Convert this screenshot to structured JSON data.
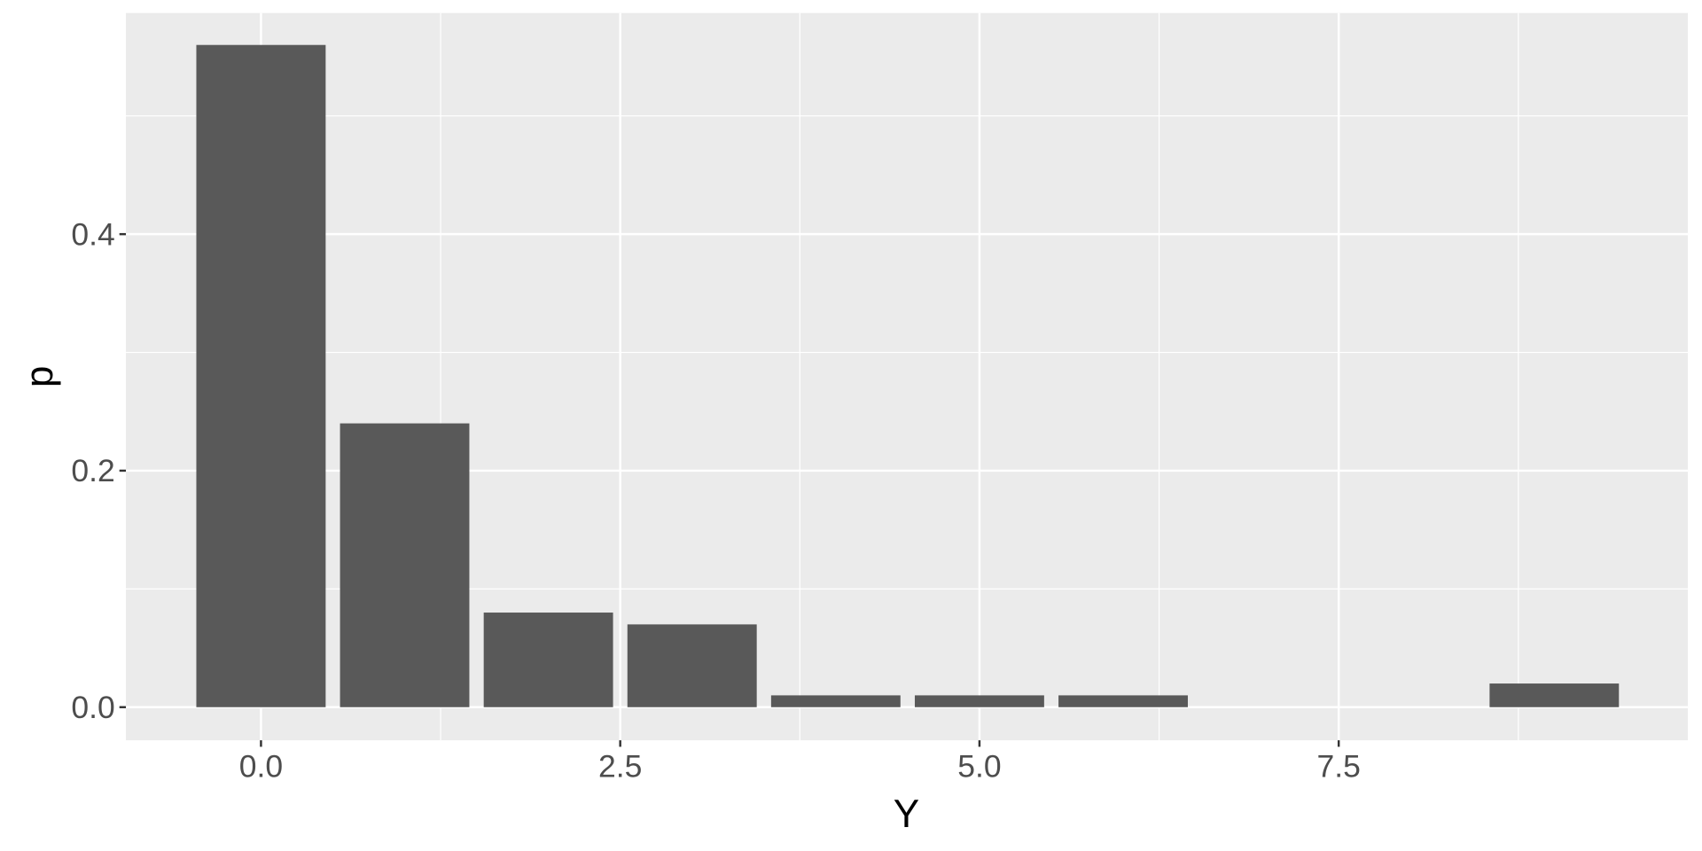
{
  "chart_data": {
    "type": "bar",
    "title": "",
    "xlabel": "Y",
    "ylabel": "p",
    "x": [
      0,
      1,
      2,
      3,
      4,
      5,
      6,
      9
    ],
    "values": [
      0.56,
      0.24,
      0.08,
      0.07,
      0.01,
      0.01,
      0.01,
      0.02
    ],
    "xlim": [
      -0.94,
      9.93
    ],
    "ylim": [
      -0.028,
      0.587
    ],
    "x_ticks": [
      0,
      2.5,
      5,
      7.5
    ],
    "x_tick_labels": [
      "0.0",
      "2.5",
      "5.0",
      "7.5"
    ],
    "y_ticks": [
      0,
      0.2,
      0.4
    ],
    "y_tick_labels": [
      "0.0",
      "0.2",
      "0.4"
    ],
    "grid": true,
    "colors": {
      "bar": "#595959",
      "panel": "#ebebeb",
      "grid": "#ffffff"
    }
  }
}
